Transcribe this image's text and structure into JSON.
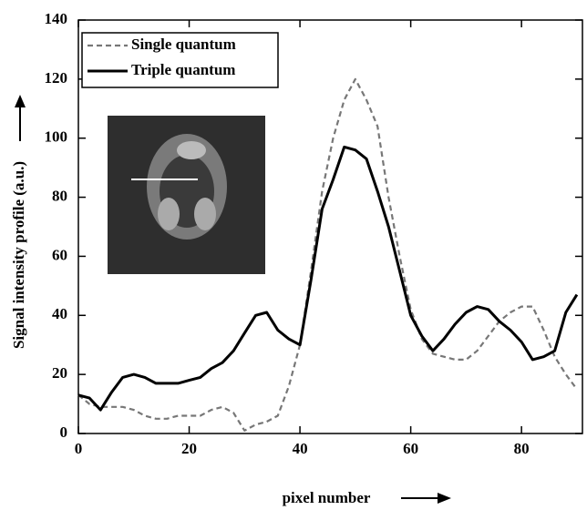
{
  "chart_data": {
    "type": "line",
    "xlabel": "pixel number",
    "ylabel": "Signal intensity profile (a.u.)",
    "x": [
      0,
      2,
      4,
      6,
      8,
      10,
      12,
      14,
      16,
      18,
      20,
      22,
      24,
      26,
      28,
      30,
      32,
      34,
      36,
      38,
      40,
      42,
      44,
      46,
      48,
      50,
      52,
      54,
      56,
      58,
      60,
      62,
      64,
      66,
      68,
      70,
      72,
      74,
      76,
      78,
      80,
      82,
      84,
      86,
      88,
      90
    ],
    "series": [
      {
        "name": "Single quantum",
        "color": "#777777",
        "dash": true,
        "values": [
          13,
          10,
          9,
          9,
          9,
          8,
          6,
          5,
          5,
          6,
          6,
          6,
          8,
          9,
          7,
          1,
          3,
          4,
          6,
          16,
          30,
          55,
          82,
          100,
          113,
          120,
          113,
          104,
          80,
          60,
          42,
          32,
          27,
          26,
          25,
          25,
          28,
          33,
          38,
          41,
          43,
          43,
          35,
          26,
          20,
          15
        ]
      },
      {
        "name": "Triple quantum",
        "color": "#000000",
        "dash": false,
        "values": [
          13,
          12,
          8,
          14,
          19,
          20,
          19,
          17,
          17,
          17,
          18,
          19,
          22,
          24,
          28,
          34,
          40,
          41,
          35,
          32,
          30,
          52,
          76,
          86,
          97,
          96,
          93,
          82,
          70,
          55,
          40,
          33,
          28,
          32,
          37,
          41,
          43,
          42,
          38,
          35,
          31,
          25,
          26,
          28,
          41,
          47
        ]
      }
    ],
    "xlim": [
      0,
      91
    ],
    "ylim": [
      0,
      140
    ],
    "xticks": [
      0,
      20,
      40,
      60,
      80
    ],
    "yticks": [
      0,
      20,
      40,
      60,
      80,
      100,
      120,
      140
    ],
    "legend": "upper left"
  }
}
